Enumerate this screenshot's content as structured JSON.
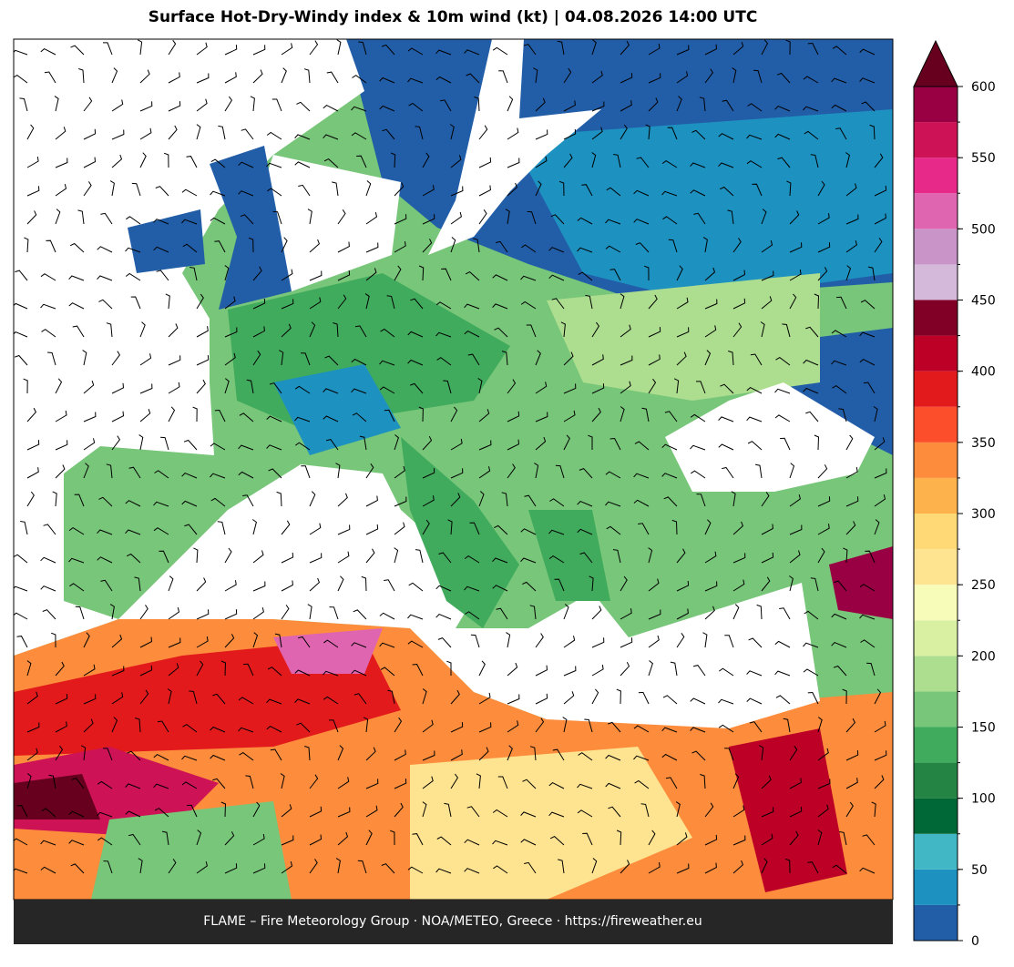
{
  "title": "Surface Hot-Dry-Windy index & 10m wind (kt)  |  04.08.2026 14:00 UTC",
  "footer": "FLAME – Fire Meteorology Group · NOA/METEO, Greece · https://fireweather.eu",
  "colorbar": {
    "bounds": [
      0,
      25,
      50,
      75,
      100,
      125,
      150,
      175,
      200,
      225,
      250,
      275,
      300,
      325,
      350,
      375,
      400,
      425,
      450,
      475,
      500,
      525,
      550,
      575,
      600
    ],
    "colors": [
      "#225ea8",
      "#1d91c0",
      "#41b6c4",
      "#006837",
      "#238443",
      "#41ab5d",
      "#78c679",
      "#addd8e",
      "#d9f0a3",
      "#f7fcb9",
      "#fee391",
      "#fed976",
      "#feb24c",
      "#fd8d3c",
      "#fc4e2a",
      "#e31a1c",
      "#bd0026",
      "#800026",
      "#d4b9da",
      "#c994c7",
      "#df65b0",
      "#e7298a",
      "#ce1256",
      "#980043"
    ],
    "extend_color": "#67001f",
    "ticks": [
      0,
      50,
      100,
      150,
      200,
      250,
      300,
      350,
      400,
      450,
      500,
      550,
      600
    ]
  }
}
